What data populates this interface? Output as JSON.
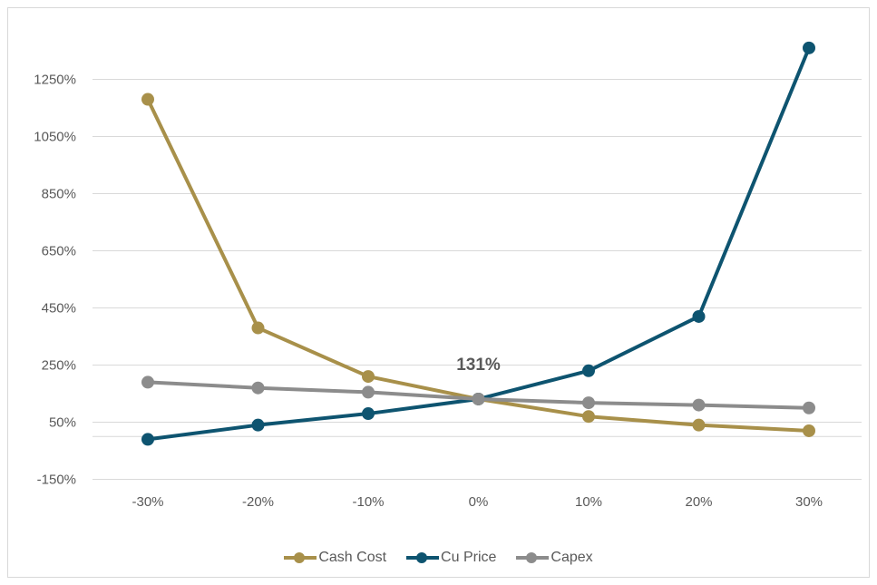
{
  "chart_data": {
    "type": "line",
    "categories": [
      "-30%",
      "-20%",
      "-10%",
      "0%",
      "10%",
      "20%",
      "30%"
    ],
    "series": [
      {
        "name": "Cash Cost",
        "color": "#a8904a",
        "values": [
          1180,
          380,
          210,
          131,
          70,
          40,
          20
        ]
      },
      {
        "name": "Cu Price",
        "color": "#0e5470",
        "values": [
          -10,
          40,
          80,
          131,
          230,
          420,
          1360
        ]
      },
      {
        "name": "Capex",
        "color": "#8c8c8c",
        "values": [
          190,
          170,
          155,
          131,
          118,
          110,
          100
        ]
      }
    ],
    "y_ticks": [
      "-150%",
      "50%",
      "250%",
      "450%",
      "650%",
      "850%",
      "1050%",
      "1250%"
    ],
    "ylim": [
      -150,
      1450
    ],
    "annotation": {
      "text": "131%",
      "category": "0%",
      "value": 131
    },
    "grid": true,
    "legend_position": "bottom"
  }
}
